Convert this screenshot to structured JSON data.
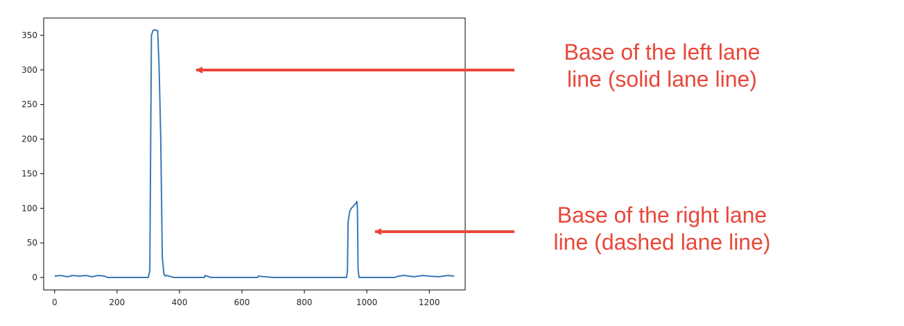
{
  "chart_data": {
    "type": "line",
    "title": "",
    "xlabel": "",
    "ylabel": "",
    "xlim": [
      -35,
      1315
    ],
    "ylim": [
      -18,
      375
    ],
    "x_ticks": [
      0,
      200,
      400,
      600,
      800,
      1000,
      1200
    ],
    "y_ticks": [
      0,
      50,
      100,
      150,
      200,
      250,
      300,
      350
    ],
    "x_tick_labels": [
      "0",
      "200",
      "400",
      "600",
      "800",
      "1000",
      "1200"
    ],
    "y_tick_labels": [
      "0",
      "50",
      "100",
      "150",
      "200",
      "250",
      "300",
      "350"
    ],
    "grid": false,
    "legend": "none",
    "line_color": "#3a78b5",
    "series": [
      {
        "x": [
          0,
          20,
          40,
          60,
          80,
          100,
          120,
          140,
          160,
          170,
          180,
          200,
          250,
          300,
          305,
          310,
          315,
          320,
          330,
          335,
          340,
          345,
          350,
          355,
          360,
          380,
          400,
          480,
          482,
          500,
          650,
          652,
          700,
          900,
          935,
          938,
          940,
          945,
          950,
          955,
          960,
          965,
          968,
          970,
          972,
          975,
          980,
          1000,
          1090,
          1100,
          1120,
          1150,
          1180,
          1200,
          1230,
          1260,
          1280
        ],
        "y": [
          2,
          3,
          1,
          3,
          2,
          3,
          1,
          3,
          2,
          0,
          0,
          0,
          0,
          0,
          10,
          350,
          357,
          358,
          357,
          300,
          200,
          30,
          5,
          2,
          3,
          0,
          0,
          0,
          3,
          0,
          0,
          2,
          0,
          0,
          0,
          10,
          80,
          95,
          100,
          102,
          105,
          107,
          110,
          100,
          12,
          0,
          0,
          0,
          0,
          2,
          3,
          1,
          3,
          2,
          1,
          3,
          2
        ]
      }
    ],
    "annotations": [
      {
        "text": [
          "Base of the left lane",
          "line (solid lane line)"
        ],
        "arrow_to": [
          430,
          300
        ]
      },
      {
        "text": [
          "Base of the right lane",
          "line (dashed lane line)"
        ],
        "arrow_to": [
          1090,
          66
        ]
      }
    ]
  }
}
